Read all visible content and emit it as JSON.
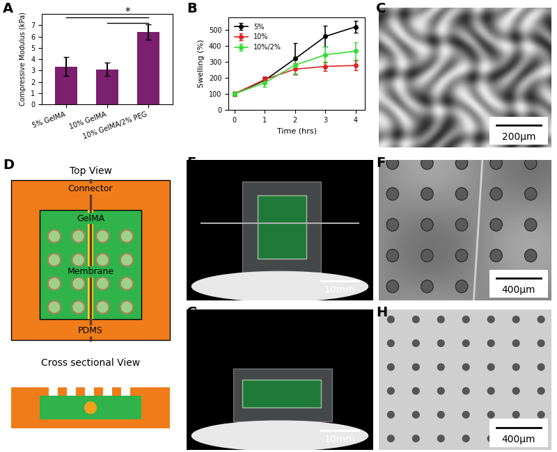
{
  "chart_data": [
    {
      "panel": "A",
      "type": "bar",
      "categories": [
        "5% GelMA",
        "10% GelMA",
        "10% GelMA/2% PEG"
      ],
      "values": [
        3.35,
        3.1,
        6.4
      ],
      "errors": [
        0.85,
        0.6,
        0.7
      ],
      "color": "#7b1f6e",
      "ylabel": "Compressive Modulus (kPa)",
      "ylim": [
        0,
        8
      ],
      "yticks": [
        0,
        1,
        2,
        3,
        4,
        5,
        6,
        7
      ],
      "significance": {
        "label": "*",
        "pairs": [
          [
            0,
            2
          ],
          [
            1,
            2
          ]
        ]
      }
    },
    {
      "panel": "B",
      "type": "line",
      "x": [
        0,
        1,
        2,
        3,
        4
      ],
      "series": [
        {
          "name": "5%",
          "color": "#000000",
          "marker": "o",
          "values": [
            100,
            185,
            320,
            460,
            520
          ],
          "errors": [
            15,
            20,
            100,
            65,
            35
          ]
        },
        {
          "name": "10%",
          "color": "#dd2222",
          "marker": "o",
          "values": [
            100,
            190,
            255,
            272,
            278
          ],
          "errors": [
            15,
            20,
            35,
            30,
            30
          ]
        },
        {
          "name": "10%/2%",
          "color": "#33dd33",
          "marker": "o",
          "values": [
            100,
            170,
            280,
            345,
            368
          ],
          "errors": [
            15,
            25,
            55,
            50,
            55
          ]
        }
      ],
      "xlabel": "Time (hrs)",
      "ylabel": "Swelling (%)",
      "xlim": [
        -0.2,
        4.3
      ],
      "xticks": [
        0,
        1,
        2,
        3,
        4
      ],
      "ylim": [
        0,
        580
      ],
      "yticks": [
        0,
        100,
        200,
        300,
        400,
        500
      ],
      "legend": "upper left"
    }
  ],
  "panels": {
    "C": {
      "label": "C",
      "scale_bar": "200μm"
    },
    "D": {
      "label": "D",
      "top_view": {
        "title": "Top View",
        "labels": {
          "connector": "Connector",
          "gelma": "GelMA",
          "membrane": "Membrane",
          "pdms": "PDMS"
        }
      },
      "cross_section": {
        "title": "Cross sectional View"
      }
    },
    "E": {
      "label": "E",
      "scale_bar": "10mm"
    },
    "F": {
      "label": "F",
      "scale_bar": "400μm"
    },
    "G": {
      "label": "G",
      "scale_bar": "10mm"
    },
    "H": {
      "label": "H",
      "scale_bar": "400μm"
    }
  }
}
